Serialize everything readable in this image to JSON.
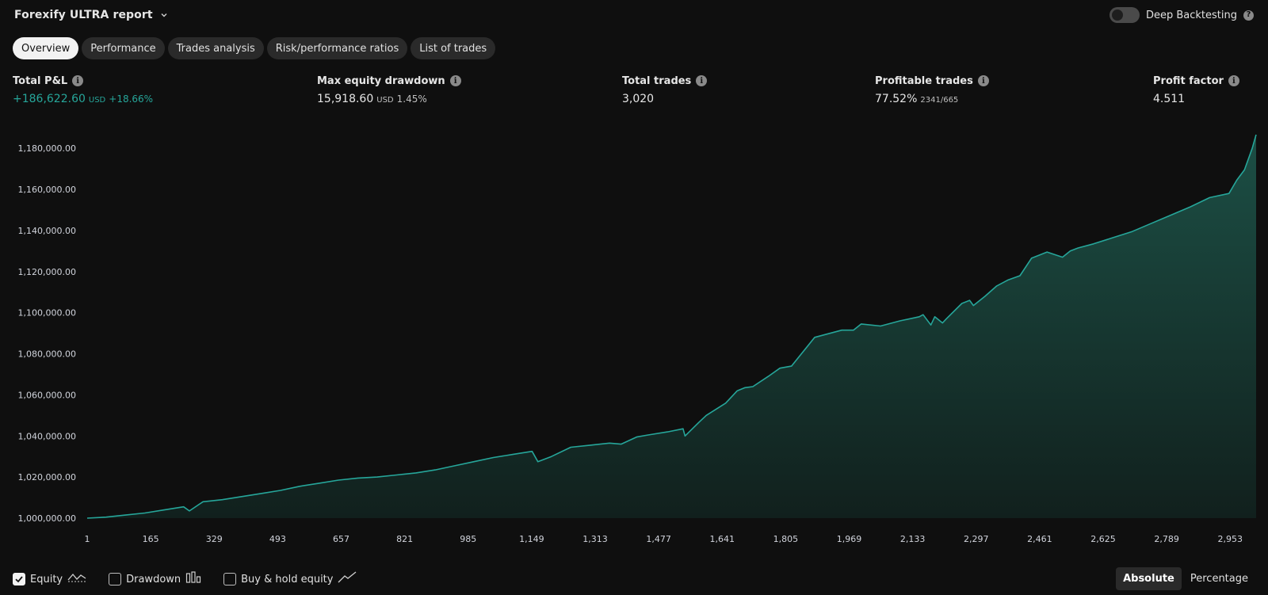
{
  "header": {
    "title": "Forexify ULTRA report"
  },
  "deep_backtesting": {
    "label": "Deep Backtesting",
    "enabled": false
  },
  "tabs": [
    {
      "label": "Overview",
      "active": true
    },
    {
      "label": "Performance",
      "active": false
    },
    {
      "label": "Trades analysis",
      "active": false
    },
    {
      "label": "Risk/performance ratios",
      "active": false
    },
    {
      "label": "List of trades",
      "active": false
    }
  ],
  "metrics": {
    "total_pnl": {
      "label": "Total P&L",
      "value": "+186,622.60",
      "unit": "USD",
      "percent": "+18.66%"
    },
    "max_drawdown": {
      "label": "Max equity drawdown",
      "value": "15,918.60",
      "unit": "USD",
      "percent": "1.45%"
    },
    "total_trades": {
      "label": "Total trades",
      "value": "3,020"
    },
    "profitable_trades": {
      "label": "Profitable trades",
      "value": "77.52%",
      "ratio": "2341/665"
    },
    "profit_factor": {
      "label": "Profit factor",
      "value": "4.511"
    }
  },
  "colors": {
    "line": "#26a69a",
    "fill_top": "#1c4f45",
    "fill_bottom": "#11201d",
    "positive": "#26a69a",
    "background": "#0f0f0f"
  },
  "chart_data": {
    "type": "area",
    "title": "",
    "xlabel": "",
    "ylabel": "",
    "xlim": [
      1,
      3020
    ],
    "ylim": [
      1000000,
      1186622.6
    ],
    "y_ticks": [
      "1,000,000.00",
      "1,020,000.00",
      "1,040,000.00",
      "1,060,000.00",
      "1,080,000.00",
      "1,100,000.00",
      "1,120,000.00",
      "1,140,000.00",
      "1,160,000.00",
      "1,180,000.00"
    ],
    "x_ticks": [
      "1",
      "165",
      "329",
      "493",
      "657",
      "821",
      "985",
      "1,149",
      "1,313",
      "1,477",
      "1,641",
      "1,805",
      "1,969",
      "2,133",
      "2,297",
      "2,461",
      "2,625",
      "2,789",
      "2,953"
    ],
    "series": [
      {
        "type": "area",
        "x": [
          1,
          50,
          100,
          150,
          200,
          250,
          265,
          300,
          350,
          400,
          450,
          500,
          550,
          600,
          650,
          700,
          750,
          800,
          850,
          900,
          950,
          1000,
          1050,
          1100,
          1150,
          1165,
          1200,
          1250,
          1300,
          1350,
          1380,
          1420,
          1450,
          1500,
          1540,
          1545,
          1580,
          1600,
          1650,
          1680,
          1700,
          1720,
          1760,
          1790,
          1820,
          1850,
          1880,
          1900,
          1950,
          1980,
          2000,
          2050,
          2080,
          2100,
          2150,
          2160,
          2180,
          2190,
          2210,
          2220,
          2260,
          2280,
          2290,
          2320,
          2350,
          2380,
          2410,
          2440,
          2460,
          2480,
          2520,
          2540,
          2560,
          2600,
          2650,
          2700,
          2750,
          2800,
          2850,
          2900,
          2950,
          2970,
          2990,
          3010,
          3020
        ],
        "y": [
          1000000,
          1000500,
          1001500,
          1002500,
          1004000,
          1005500,
          1003500,
          1008000,
          1009000,
          1010500,
          1012000,
          1013500,
          1015500,
          1017000,
          1018500,
          1019500,
          1020000,
          1021000,
          1022000,
          1023500,
          1025500,
          1027500,
          1029500,
          1031000,
          1032500,
          1027500,
          1030000,
          1034500,
          1035500,
          1036500,
          1036000,
          1039500,
          1040500,
          1042000,
          1043500,
          1040000,
          1046500,
          1050000,
          1056000,
          1062000,
          1063500,
          1064000,
          1069000,
          1073000,
          1074000,
          1081000,
          1088000,
          1089000,
          1091500,
          1091500,
          1094500,
          1093500,
          1095000,
          1096000,
          1098000,
          1099000,
          1094000,
          1098000,
          1095000,
          1097000,
          1104500,
          1106000,
          1103500,
          1108000,
          1113000,
          1116000,
          1118000,
          1126500,
          1128000,
          1129500,
          1127000,
          1130000,
          1131500,
          1133500,
          1136500,
          1139500,
          1143500,
          1147500,
          1151500,
          1156000,
          1158000,
          1164500,
          1169500,
          1180000,
          1186622.6
        ]
      }
    ]
  },
  "legend": {
    "equity": {
      "label": "Equity",
      "checked": true
    },
    "drawdown": {
      "label": "Drawdown",
      "checked": false
    },
    "buy_hold": {
      "label": "Buy & hold equity",
      "checked": false
    }
  },
  "mode": {
    "absolute": "Absolute",
    "percentage": "Percentage",
    "active": "Absolute"
  }
}
